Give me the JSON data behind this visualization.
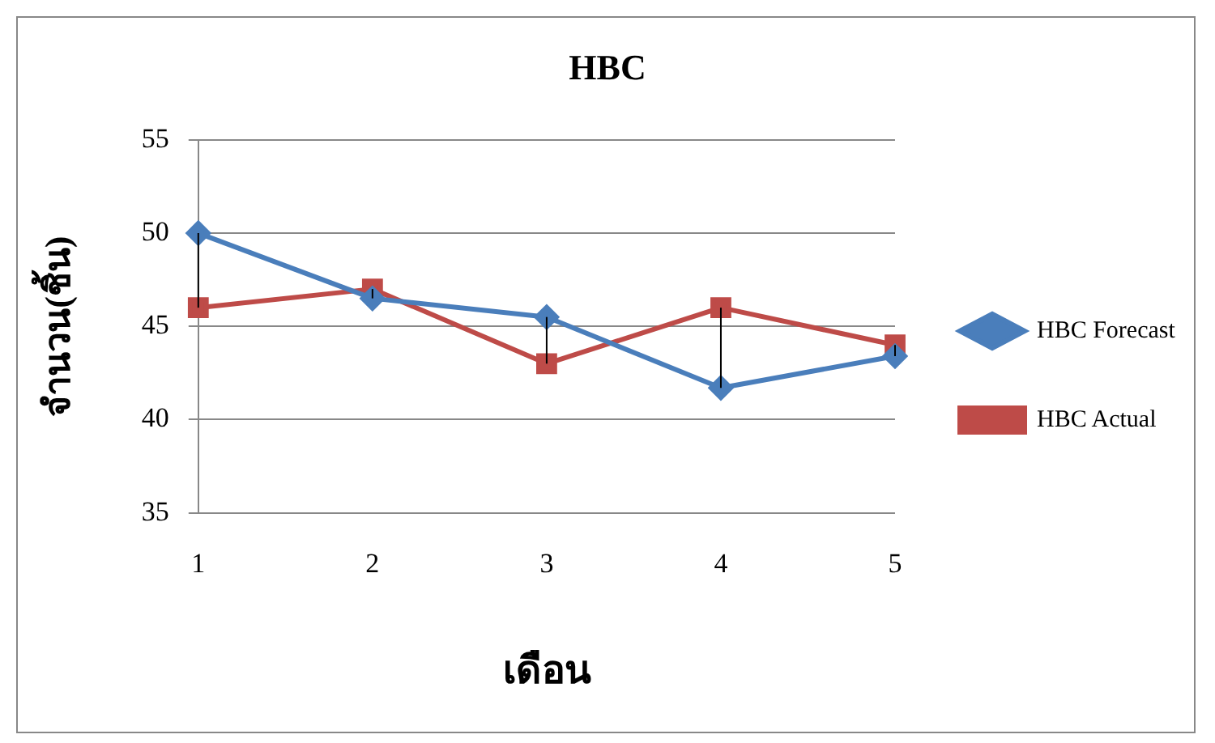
{
  "chart_data": {
    "type": "line",
    "title": "HBC",
    "xlabel": "เดือน",
    "ylabel": "จำนวน(ชิ้น)",
    "categories": [
      "1",
      "2",
      "3",
      "4",
      "5"
    ],
    "series": [
      {
        "name": "HBC Forecast",
        "color": "#4a7ebb",
        "marker": "diamond",
        "values": [
          50,
          46.5,
          45.5,
          41.7,
          43.4
        ]
      },
      {
        "name": "HBC Actual",
        "color": "#be4b48",
        "marker": "square",
        "values": [
          46,
          47,
          43,
          46,
          44
        ],
        "errors": [
          [
            46,
            50
          ],
          [
            46.5,
            47
          ],
          [
            43,
            45.5
          ],
          [
            41.7,
            46
          ],
          [
            43.4,
            44
          ]
        ]
      }
    ],
    "ylim": [
      35,
      55
    ],
    "yticks": [
      35,
      40,
      45,
      50,
      55
    ],
    "grid": "y",
    "legend": "right"
  }
}
